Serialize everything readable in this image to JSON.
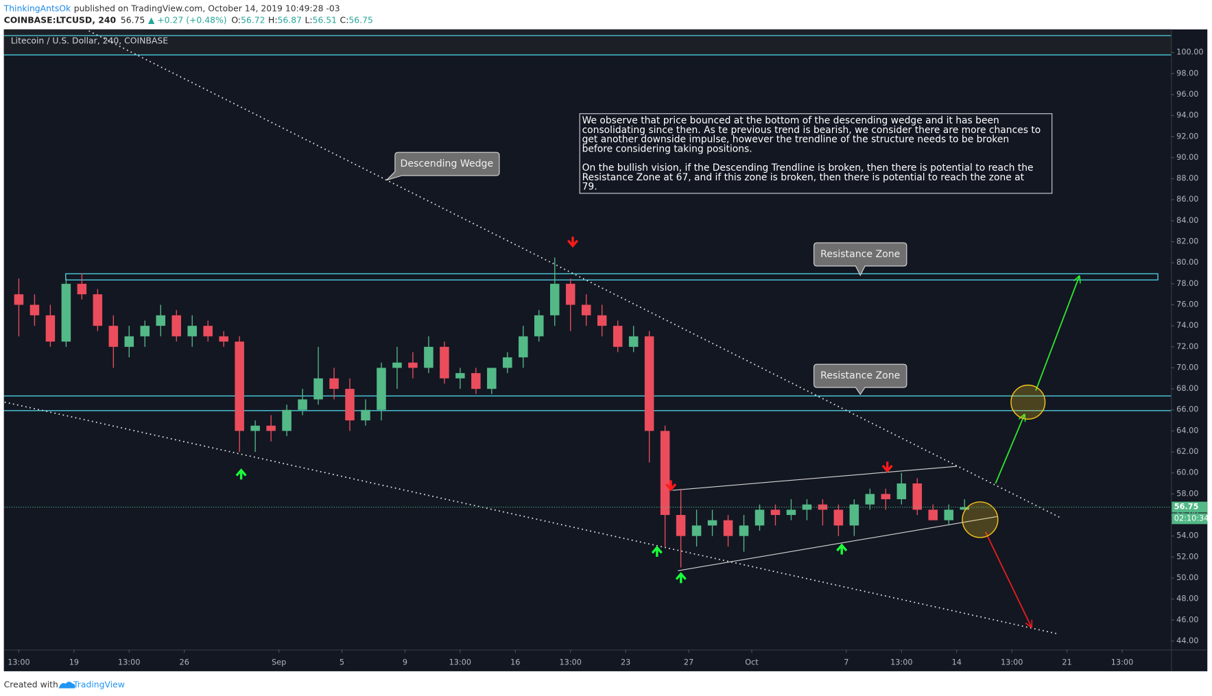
{
  "header": {
    "author": "ThinkingAntsOk",
    "published": "published on TradingView.com, October 14, 2019 10:49:28 -03",
    "symbol": "COINBASE:LTCUSD, 240",
    "last": "56.75",
    "change": "▲ +0.27 (+0.48%)",
    "ohlc": [
      {
        "key": "O:",
        "value": "56.72"
      },
      {
        "key": "H:",
        "value": "56.87"
      },
      {
        "key": "L:",
        "value": "56.51"
      },
      {
        "key": "C:",
        "value": "56.75"
      }
    ]
  },
  "chart_data": {
    "type": "candlestick",
    "title": "Litecoin / U.S. Dollar, 240, COINBASE",
    "open": [
      77,
      76,
      75,
      72.5,
      78,
      77,
      74,
      72,
      73,
      74,
      75,
      73,
      74,
      73,
      72.5,
      64,
      64.5,
      64,
      66,
      67,
      69,
      68,
      65,
      66,
      70,
      70.5,
      70,
      72,
      69,
      69.5,
      68,
      70,
      71,
      73,
      75,
      78,
      76,
      75,
      74,
      72,
      73,
      64,
      56,
      54,
      55,
      55.5,
      54,
      55,
      56.5,
      56,
      56.5,
      57,
      56.5,
      55,
      57,
      58,
      57.5,
      59,
      56.5,
      55.5,
      56.5
    ],
    "high": [
      78.5,
      77,
      76,
      78.5,
      79,
      77.5,
      75,
      74,
      74.5,
      76,
      75.5,
      75,
      74.5,
      73.5,
      73,
      65,
      65.5,
      66.5,
      68,
      72,
      70,
      69,
      67,
      70.5,
      72,
      71.5,
      73,
      72.5,
      70,
      70,
      70,
      71.5,
      74,
      75.5,
      80.5,
      78.5,
      77,
      76,
      74.5,
      74,
      73.5,
      64.5,
      58.5,
      56.5,
      56.5,
      56,
      56,
      57,
      57,
      57.5,
      57.5,
      57.5,
      57,
      57.5,
      58.5,
      58.5,
      60,
      59.5,
      57,
      57,
      57.5
    ],
    "low": [
      73,
      74,
      72,
      72,
      76.5,
      73.5,
      70,
      71,
      72,
      73,
      72.5,
      72,
      72.5,
      72,
      62,
      62,
      63,
      63.5,
      65.5,
      66.5,
      67,
      64,
      64.5,
      65,
      68,
      69,
      69.5,
      68.5,
      68,
      67.5,
      67.5,
      69.5,
      70,
      72.5,
      74,
      73.5,
      74,
      73,
      71.5,
      71.5,
      61,
      53,
      51,
      53,
      54,
      53,
      52.5,
      54.5,
      55,
      55.5,
      55.5,
      55,
      54,
      54,
      56.5,
      56.5,
      57,
      56,
      55.5,
      55,
      56.5
    ],
    "close": [
      76,
      75,
      72.5,
      78,
      77,
      74,
      72,
      73,
      74,
      75,
      73,
      74,
      73,
      72.5,
      64,
      64.5,
      64,
      66,
      67,
      69,
      68,
      65,
      66,
      70,
      70.5,
      70,
      72,
      69,
      69.5,
      68,
      70,
      71,
      73,
      75,
      78,
      76,
      75,
      74,
      72,
      73,
      64,
      56,
      54,
      55,
      55.5,
      54,
      55,
      56.5,
      56,
      56.5,
      57,
      56.5,
      55,
      57,
      58,
      57.5,
      59,
      56.5,
      55.5,
      56.5,
      56.75
    ],
    "xlim": [
      -0.4,
      73.6
    ],
    "xticks": [
      {
        "value": 0.5,
        "label": "13:00"
      },
      {
        "value": 4,
        "label": "19"
      },
      {
        "value": 7.5,
        "label": "13:00"
      },
      {
        "value": 11,
        "label": "26"
      },
      {
        "value": 17,
        "label": "Sep"
      },
      {
        "value": 21,
        "label": "5"
      },
      {
        "value": 25,
        "label": "9"
      },
      {
        "value": 28.5,
        "label": "13:00"
      },
      {
        "value": 32,
        "label": "16"
      },
      {
        "value": 35.5,
        "label": "13:00"
      },
      {
        "value": 39,
        "label": "23"
      },
      {
        "value": 43,
        "label": "27"
      },
      {
        "value": 47,
        "label": "Oct"
      },
      {
        "value": 53,
        "label": "7"
      },
      {
        "value": 56.5,
        "label": "13:00"
      },
      {
        "value": 60,
        "label": "14"
      },
      {
        "value": 63.5,
        "label": "13:00"
      },
      {
        "value": 67,
        "label": "21"
      },
      {
        "value": 70.5,
        "label": "13:00"
      }
    ],
    "ylim": [
      43.19,
      102.06
    ],
    "yticks": [
      {
        "value": 44,
        "label": "44.00"
      },
      {
        "value": 46,
        "label": "46.00"
      },
      {
        "value": 48,
        "label": "48.00"
      },
      {
        "value": 50,
        "label": "50.00"
      },
      {
        "value": 52,
        "label": "52.00"
      },
      {
        "value": 54,
        "label": "54.00"
      },
      {
        "value": 56,
        "label": "56.00"
      },
      {
        "value": 58,
        "label": "58.00"
      },
      {
        "value": 60,
        "label": "60.00"
      },
      {
        "value": 62,
        "label": "62.00"
      },
      {
        "value": 64,
        "label": "64.00"
      },
      {
        "value": 66,
        "label": "66.00"
      },
      {
        "value": 68,
        "label": "68.00"
      },
      {
        "value": 70,
        "label": "70.00"
      },
      {
        "value": 72,
        "label": "72.00"
      },
      {
        "value": 74,
        "label": "74.00"
      },
      {
        "value": 76,
        "label": "76.00"
      },
      {
        "value": 78,
        "label": "78.00"
      },
      {
        "value": 80,
        "label": "80.00"
      },
      {
        "value": 82,
        "label": "82.00"
      },
      {
        "value": 84,
        "label": "84.00"
      },
      {
        "value": 86,
        "label": "86.00"
      },
      {
        "value": 88,
        "label": "88.00"
      },
      {
        "value": 90,
        "label": "90.00"
      },
      {
        "value": 92,
        "label": "92.00"
      },
      {
        "value": 94,
        "label": "94.00"
      },
      {
        "value": 96,
        "label": "96.00"
      },
      {
        "value": 98,
        "label": "98.00"
      },
      {
        "value": 100,
        "label": "100.00"
      }
    ],
    "up_color": "#53b987",
    "down_color": "#eb4d5c",
    "last_price": {
      "value": 56.75,
      "label": "56.75"
    },
    "countdown": "02:10:34",
    "note": [
      "We observe that price bounced at the bottom of the descending wedge and it has been",
      "consolidating since then. As te previous trend is bearish, we consider there are more chances to",
      "get another downside impulse, however the trendline of the structure needs to be broken",
      "before considering taking positions.",
      "On the bullish vision, if the Descending Trendline is broken, then there is potential to reach the",
      "Resistance Zone at 67, and if this zone is broken, then there is potential to reach the zone at",
      "79."
    ],
    "callouts": [
      "Descending Wedge",
      "Resistance Zone",
      "Resistance Zone"
    ]
  },
  "footer": {
    "text": "Created with",
    "brand": "TradingView"
  }
}
